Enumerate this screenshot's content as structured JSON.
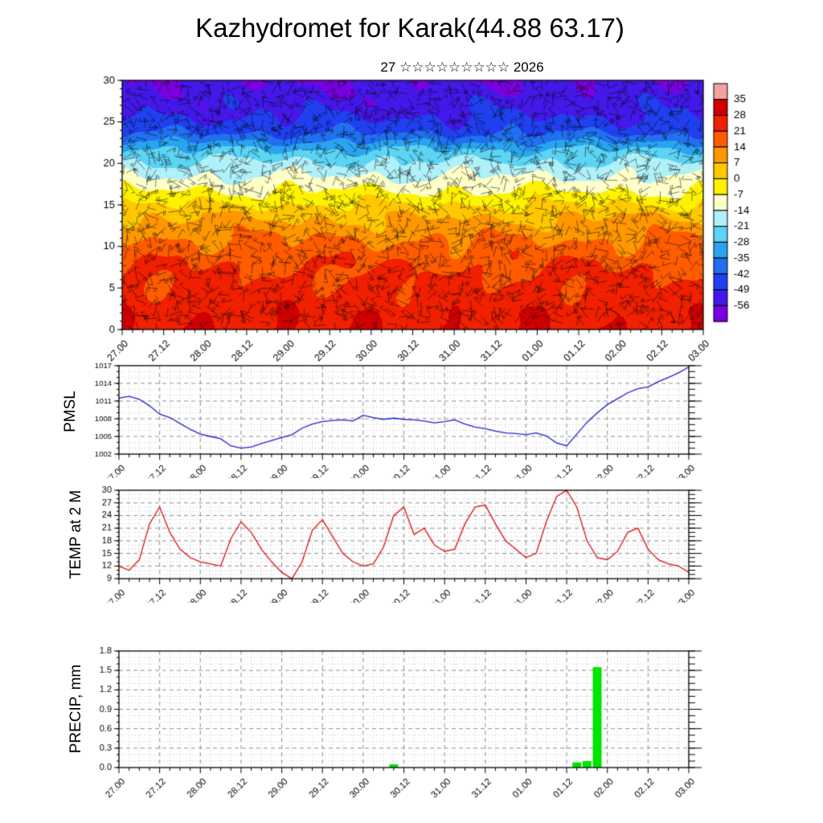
{
  "page": {
    "title": "Kazhydromet for Karak(44.88 63.17)",
    "subtitle": "27 ☆☆☆☆☆☆☆☆☆ 2026"
  },
  "time_axis": {
    "labels": [
      "27.00",
      "27.12",
      "28.00",
      "28.12",
      "29.00",
      "29.12",
      "30.00",
      "30.12",
      "31.00",
      "31.12",
      "01.00",
      "01.12",
      "02.00",
      "02.12",
      "03.00"
    ],
    "hours_total": 168,
    "step_hours": 3,
    "major_step_hours": 12
  },
  "chart_data": [
    {
      "id": "cross_section",
      "type": "heatmap",
      "title": "",
      "ylabel": "",
      "ylim": [
        0,
        30
      ],
      "yticks": [
        0,
        5,
        10,
        15,
        20,
        25,
        30
      ],
      "overlay": "wind-barbs",
      "colorbar_labels": [
        35,
        28,
        21,
        14,
        7,
        0,
        -7,
        -14,
        -21,
        -28,
        -35,
        -42,
        -49,
        -56
      ],
      "colorbar_colors": [
        "#f2a2a2",
        "#d00000",
        "#f02000",
        "#ff5c00",
        "#ff9800",
        "#ffc800",
        "#fff200",
        "#ffffc8",
        "#b0f0f8",
        "#5cd4f4",
        "#2aa4f0",
        "#2070f0",
        "#2040f0",
        "#4418e8",
        "#7a00e0"
      ],
      "profile_heights": [
        0,
        2,
        5,
        8,
        10,
        12,
        14,
        15,
        16,
        17,
        18,
        19,
        20,
        21,
        22,
        23,
        24,
        26,
        30
      ],
      "profile_values": [
        27,
        26,
        23,
        20,
        16,
        11,
        5,
        0,
        -4,
        -8,
        -12,
        -16,
        -20,
        -24,
        -30,
        -38,
        -44,
        -50,
        -56
      ]
    },
    {
      "id": "pmsl",
      "type": "line",
      "label": "PMSL",
      "color": "#2222cc",
      "ylim": [
        1002,
        1017
      ],
      "yticks": [
        1002,
        1005,
        1008,
        1011,
        1014,
        1017
      ],
      "y_minor_step": 1,
      "values": [
        1011.5,
        1011.8,
        1011.3,
        1010.2,
        1008.8,
        1008.2,
        1007.2,
        1006.2,
        1005.4,
        1005.0,
        1004.6,
        1003.4,
        1003.0,
        1003.2,
        1003.8,
        1004.3,
        1004.8,
        1005.3,
        1006.4,
        1007.1,
        1007.5,
        1007.7,
        1007.8,
        1007.6,
        1008.6,
        1008.2,
        1007.9,
        1008.1,
        1007.9,
        1007.8,
        1007.6,
        1007.3,
        1007.5,
        1007.8,
        1007.1,
        1006.6,
        1006.3,
        1005.9,
        1005.6,
        1005.5,
        1005.3,
        1005.6,
        1005.1,
        1003.9,
        1003.4,
        1005.4,
        1007.4,
        1009.0,
        1010.4,
        1011.4,
        1012.4,
        1013.1,
        1013.4,
        1014.3,
        1015.0,
        1015.8,
        1016.8
      ]
    },
    {
      "id": "temp2m",
      "type": "line",
      "label": "TEMP at 2 M",
      "color": "#dd1111",
      "ylim": [
        9,
        30
      ],
      "yticks": [
        9,
        12,
        15,
        18,
        21,
        24,
        27,
        30
      ],
      "y_minor_step": 1,
      "values": [
        12.0,
        11.0,
        13.5,
        22.0,
        26.0,
        20.0,
        16.0,
        14.0,
        13.0,
        12.5,
        12.0,
        18.5,
        22.5,
        20.0,
        16.0,
        13.0,
        10.5,
        9.0,
        13.0,
        20.5,
        23.0,
        19.0,
        15.0,
        13.0,
        12.0,
        12.5,
        16.5,
        24.0,
        26.0,
        19.5,
        21.0,
        17.0,
        15.5,
        16.0,
        22.0,
        26.0,
        26.5,
        22.0,
        18.0,
        16.0,
        14.0,
        15.0,
        22.5,
        28.5,
        30.0,
        26.0,
        18.0,
        14.0,
        13.5,
        15.5,
        20.0,
        21.0,
        16.0,
        13.5,
        12.5,
        12.0,
        10.5
      ]
    },
    {
      "id": "precip",
      "type": "bar",
      "label": "PRECIP, mm",
      "color": "#00e400",
      "ylim": [
        0,
        1.8
      ],
      "ytick_labels": [
        "0.0",
        "0.3",
        "0.6",
        "0.9",
        "1.2",
        "1.5",
        "1.8"
      ],
      "y_minor_step": 0.1,
      "values": [
        0,
        0,
        0,
        0,
        0,
        0,
        0,
        0,
        0,
        0,
        0,
        0,
        0,
        0,
        0,
        0,
        0,
        0,
        0,
        0,
        0,
        0,
        0,
        0,
        0,
        0,
        0,
        0.05,
        0,
        0,
        0,
        0,
        0,
        0,
        0,
        0,
        0,
        0,
        0,
        0,
        0,
        0,
        0,
        0,
        0,
        0.08,
        0.1,
        1.55,
        0,
        0,
        0,
        0,
        0,
        0,
        0,
        0,
        0
      ]
    }
  ]
}
